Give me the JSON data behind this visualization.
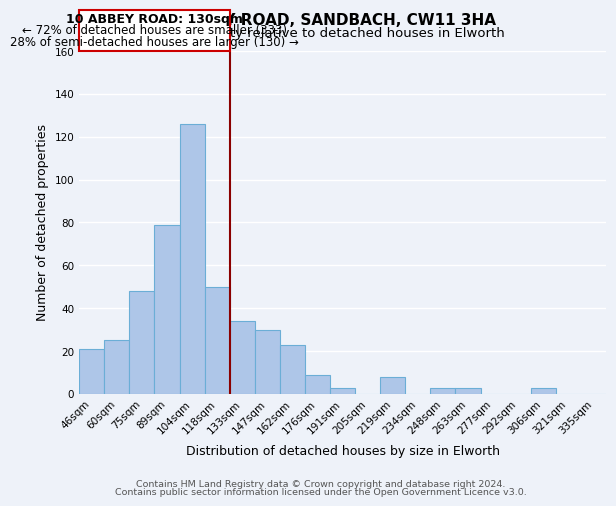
{
  "title1": "10, ABBEY ROAD, SANDBACH, CW11 3HA",
  "title2": "Size of property relative to detached houses in Elworth",
  "xlabel": "Distribution of detached houses by size in Elworth",
  "ylabel": "Number of detached properties",
  "bar_labels": [
    "46sqm",
    "60sqm",
    "75sqm",
    "89sqm",
    "104sqm",
    "118sqm",
    "133sqm",
    "147sqm",
    "162sqm",
    "176sqm",
    "191sqm",
    "205sqm",
    "219sqm",
    "234sqm",
    "248sqm",
    "263sqm",
    "277sqm",
    "292sqm",
    "306sqm",
    "321sqm",
    "335sqm"
  ],
  "bar_values": [
    21,
    25,
    48,
    79,
    126,
    50,
    34,
    30,
    23,
    9,
    3,
    0,
    8,
    0,
    3,
    3,
    0,
    0,
    3,
    0,
    0
  ],
  "bar_color": "#aec6e8",
  "bar_edge_color": "#6baed6",
  "ylim": [
    0,
    160
  ],
  "yticks": [
    0,
    20,
    40,
    60,
    80,
    100,
    120,
    140,
    160
  ],
  "property_line_color": "#8b0000",
  "annotation_title": "10 ABBEY ROAD: 130sqm",
  "annotation_line1": "← 72% of detached houses are smaller (333)",
  "annotation_line2": "28% of semi-detached houses are larger (130) →",
  "annotation_box_edge_color": "#cc0000",
  "footer1": "Contains HM Land Registry data © Crown copyright and database right 2024.",
  "footer2": "Contains public sector information licensed under the Open Government Licence v3.0.",
  "background_color": "#eef2f9",
  "grid_color": "#ffffff",
  "title_fontsize": 11,
  "subtitle_fontsize": 9.5,
  "axis_label_fontsize": 9,
  "tick_fontsize": 7.5,
  "footer_fontsize": 6.8,
  "annotation_fontsize": 8.5,
  "annotation_title_fontsize": 9
}
